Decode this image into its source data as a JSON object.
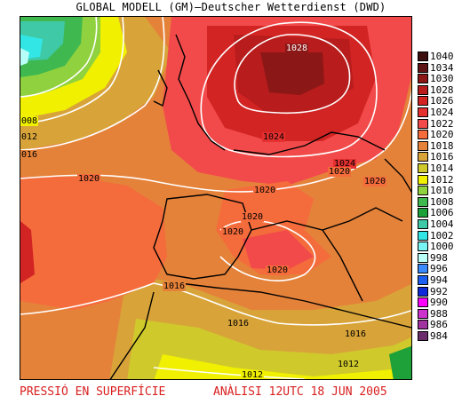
{
  "title": "GLOBAL MODELL (GM)—Deutscher Wetterdienst (DWD)",
  "footer": {
    "left": "PRESSIÓ EN SUPERFÍCIE",
    "right": "ANÀLISI 12UTC 18 JUN 2005"
  },
  "legend": [
    {
      "label": "1040",
      "color": "#3d0f0f"
    },
    {
      "label": "1034",
      "color": "#5e1414"
    },
    {
      "label": "1030",
      "color": "#8b1717"
    },
    {
      "label": "1028",
      "color": "#b81c1c"
    },
    {
      "label": "1026",
      "color": "#d32424"
    },
    {
      "label": "1024",
      "color": "#e63030"
    },
    {
      "label": "1022",
      "color": "#f24a4a"
    },
    {
      "label": "1020",
      "color": "#f46b3c"
    },
    {
      "label": "1018",
      "color": "#e5823a"
    },
    {
      "label": "1016",
      "color": "#d8a439"
    },
    {
      "label": "1014",
      "color": "#cfc92c"
    },
    {
      "label": "1012",
      "color": "#f0f000"
    },
    {
      "label": "1010",
      "color": "#8fd13e"
    },
    {
      "label": "1008",
      "color": "#3eb84f"
    },
    {
      "label": "1006",
      "color": "#1fa13a"
    },
    {
      "label": "1004",
      "color": "#3fc9a6"
    },
    {
      "label": "1002",
      "color": "#33e6e6"
    },
    {
      "label": "1000",
      "color": "#7af5f5"
    },
    {
      "label": "998",
      "color": "#b8fff8"
    },
    {
      "label": "996",
      "color": "#3a8aff"
    },
    {
      "label": "994",
      "color": "#1a5ef2"
    },
    {
      "label": "992",
      "color": "#0e2ad8"
    },
    {
      "label": "990",
      "color": "#ff00ff"
    },
    {
      "label": "988",
      "color": "#cc33cc"
    },
    {
      "label": "986",
      "color": "#a033a0"
    },
    {
      "label": "984",
      "color": "#6a2c6a"
    }
  ],
  "isobar_labels": [
    "1028",
    "1024",
    "1024",
    "1020",
    "1020",
    "1020",
    "1020",
    "1020",
    "1020",
    "1020",
    "1016",
    "1016",
    "1016",
    "1012",
    "1012"
  ],
  "edge_labels": [
    "008",
    "012",
    "016"
  ],
  "colors": {
    "footer_text": "#d81e1e",
    "isobar": "#ffffff",
    "coast": "#000000"
  }
}
